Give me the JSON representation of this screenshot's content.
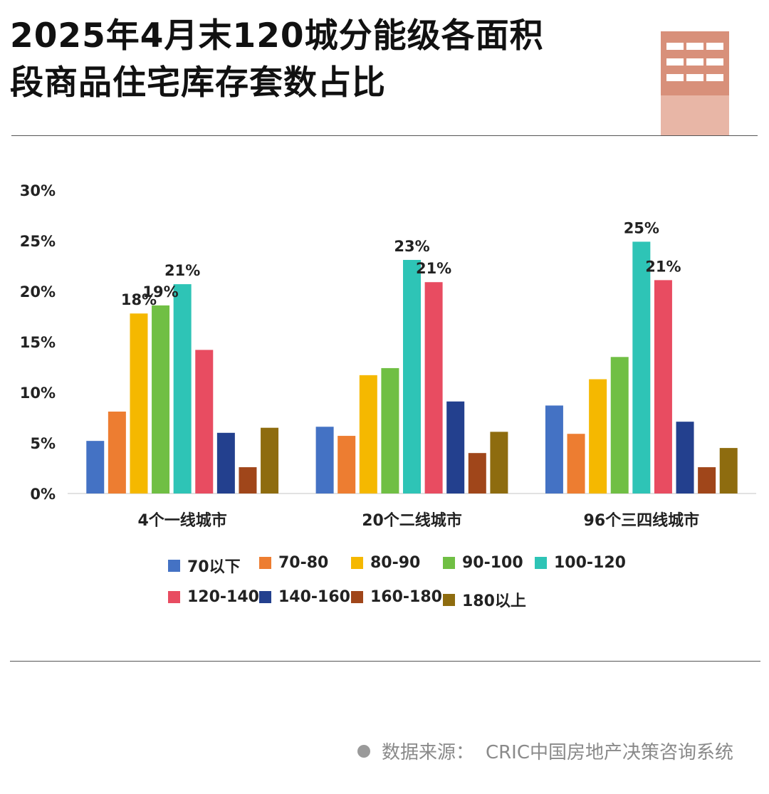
{
  "title_lines": [
    "2025年4月末120城分能级各面积",
    "段商品住宅库存套数占比"
  ],
  "source": {
    "label": "数据来源：",
    "text": "CRIC中国房地产决策咨询系统"
  },
  "chart_data": {
    "type": "bar",
    "title": "2025年4月末120城分能级各面积段商品住宅库存套数占比",
    "categories": [
      "4个一线城市",
      "20个二线城市",
      "96个三四线城市"
    ],
    "ylim": [
      0,
      30
    ],
    "yticks": [
      0,
      5,
      10,
      15,
      20,
      25,
      30
    ],
    "ytick_labels": [
      "0%",
      "5%",
      "10%",
      "15%",
      "20%",
      "25%",
      "30%"
    ],
    "grid": false,
    "legend_position": "bottom",
    "series": [
      {
        "name": "70以下",
        "color": "#4472C4",
        "values": [
          5.2,
          6.6,
          8.7
        ]
      },
      {
        "name": "70-80",
        "color": "#ED7D31",
        "values": [
          8.1,
          5.7,
          5.9
        ]
      },
      {
        "name": "80-90",
        "color": "#F5B800",
        "values": [
          17.8,
          11.7,
          11.3
        ]
      },
      {
        "name": "90-100",
        "color": "#70BF44",
        "values": [
          18.6,
          12.4,
          13.5
        ]
      },
      {
        "name": "100-120",
        "color": "#2EC4B6",
        "values": [
          20.7,
          23.1,
          24.9
        ]
      },
      {
        "name": "120-140",
        "color": "#E84C61",
        "values": [
          14.2,
          20.9,
          21.1
        ]
      },
      {
        "name": "140-160",
        "color": "#23408E",
        "values": [
          6.0,
          9.1,
          7.1
        ]
      },
      {
        "name": "160-180",
        "color": "#A0461A",
        "values": [
          2.6,
          4.0,
          2.6
        ]
      },
      {
        "name": "180以上",
        "color": "#8E6C0F",
        "values": [
          6.5,
          6.1,
          4.5
        ]
      }
    ],
    "data_labels": [
      {
        "category_index": 0,
        "series_index": 2,
        "text": "18%"
      },
      {
        "category_index": 0,
        "series_index": 3,
        "text": "19%"
      },
      {
        "category_index": 0,
        "series_index": 4,
        "text": "21%"
      },
      {
        "category_index": 1,
        "series_index": 4,
        "text": "23%"
      },
      {
        "category_index": 1,
        "series_index": 5,
        "text": "21%"
      },
      {
        "category_index": 2,
        "series_index": 4,
        "text": "25%"
      },
      {
        "category_index": 2,
        "series_index": 5,
        "text": "21%"
      }
    ]
  }
}
